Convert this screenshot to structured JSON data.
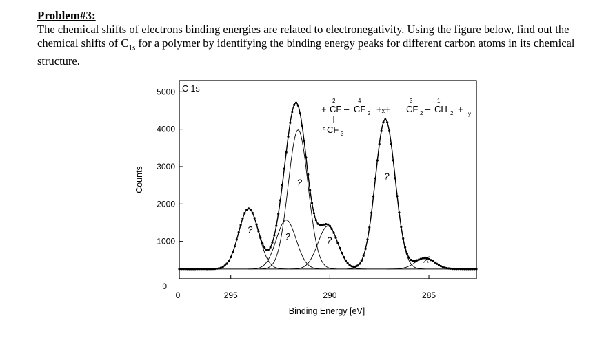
{
  "problem": {
    "title": "Problem#3:",
    "text_before_sub": "The chemical shifts of electrons binding energies are related to electronegativity. Using the figure below, find out the chemical shifts of C",
    "sub": "1s",
    "text_after_sub": " for a polymer by identifying the binding energy peaks for different carbon atoms in its chemical structure."
  },
  "chart_data": {
    "type": "line",
    "title": "C 1s",
    "xlabel": "Binding Energy [eV]",
    "ylabel": "Counts",
    "x_reversed": true,
    "xlim": [
      297.6,
      282.6
    ],
    "ylim": [
      0,
      5300
    ],
    "x_ticks": [
      295,
      290,
      285
    ],
    "x_tick_labels": [
      "295",
      "290",
      "285"
    ],
    "y_ticks": [
      0,
      1000,
      2000,
      3000,
      4000,
      5000
    ],
    "y_tick_labels": [
      "0",
      "1000",
      "2000",
      "3000",
      "4000",
      "5000"
    ],
    "origin_label": "0",
    "grid": false,
    "baseline": 260,
    "peaks": [
      {
        "label": "?",
        "center": 294.1,
        "height": 1620
      },
      {
        "label": "?",
        "center": 292.2,
        "height": 1310
      },
      {
        "label": "?",
        "center": 291.6,
        "height": 3720
      },
      {
        "label": "?",
        "center": 290.1,
        "height": 1150
      },
      {
        "label": "?",
        "center": 287.2,
        "height": 4000
      },
      {
        "label": "X",
        "center": 285.2,
        "height": 290
      }
    ],
    "peak_width": 0.5,
    "structure": {
      "left_bracket": "+",
      "atom_2": "CF",
      "dash_1": "–",
      "atom_4": "CF",
      "sub_2a": "2",
      "mid_brackets": "+ₓ+",
      "atom_3": "CF",
      "sub_2b": "2",
      "dash_2": "–",
      "atom_1": "CH",
      "sub_2c": "2",
      "right_bracket": "+",
      "sub_y": "y",
      "atom_5": "CF",
      "sub_3": "3",
      "num_1": "1",
      "num_2": "2",
      "num_3": "3",
      "num_4": "4",
      "num_5": "5"
    }
  }
}
